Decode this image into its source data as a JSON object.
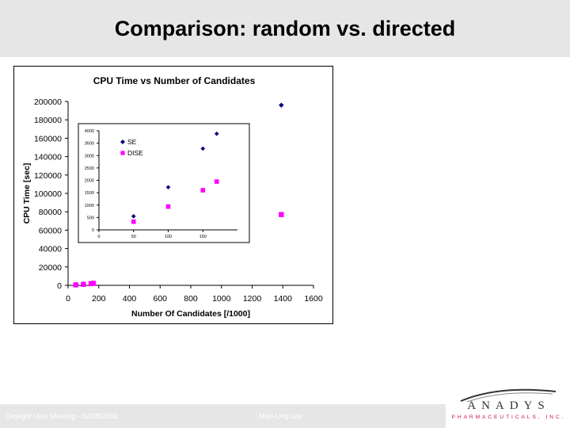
{
  "slide": {
    "title": "Comparison: random vs. directed",
    "footer_left": "Daylight User Meeting - 02/28/2002",
    "footer_center": "Man-Ling Lee"
  },
  "logo": {
    "name": "ANADYS",
    "subtitle": "PHARMACEUTICALS, INC.",
    "accent_color": "#c8103e"
  },
  "colors": {
    "se": "#000080",
    "dise": "#ff00ff"
  },
  "chart_data": [
    {
      "type": "scatter",
      "title": "CPU Time vs Number of Candidates",
      "xlabel": "Number Of Candidates [/1000]",
      "ylabel": "CPU Time [sec]",
      "xlim": [
        0,
        1600
      ],
      "ylim": [
        0,
        200000
      ],
      "x_ticks": [
        0,
        200,
        400,
        600,
        800,
        1000,
        1200,
        1400,
        1600
      ],
      "y_ticks": [
        0,
        20000,
        40000,
        60000,
        80000,
        100000,
        120000,
        140000,
        160000,
        180000,
        200000
      ],
      "grid": false,
      "series": [
        {
          "name": "SE",
          "marker": "diamond",
          "points": [
            [
              50,
              800
            ],
            [
              100,
              1500
            ],
            [
              150,
              2300
            ],
            [
              165,
              2600
            ],
            [
              1390,
              196000
            ]
          ]
        },
        {
          "name": "DISE",
          "marker": "square",
          "points": [
            [
              50,
              500
            ],
            [
              100,
              1000
            ],
            [
              150,
              1800
            ],
            [
              165,
              2100
            ],
            [
              1390,
              77000
            ]
          ]
        }
      ]
    },
    {
      "type": "scatter",
      "xlim": [
        0,
        200
      ],
      "ylim": [
        0,
        4000
      ],
      "x_ticks": [
        0,
        50,
        100,
        150
      ],
      "y_ticks": [
        0,
        500,
        1000,
        1500,
        2000,
        2500,
        3000,
        3500,
        4000
      ],
      "legend": "top-left",
      "grid": false,
      "series": [
        {
          "name": "SE",
          "marker": "diamond",
          "points": [
            [
              50,
              550
            ],
            [
              100,
              1720
            ],
            [
              150,
              3280
            ],
            [
              170,
              3880
            ]
          ]
        },
        {
          "name": "DISE",
          "marker": "square",
          "points": [
            [
              50,
              330
            ],
            [
              100,
              940
            ],
            [
              150,
              1600
            ],
            [
              170,
              1950
            ]
          ]
        }
      ]
    }
  ]
}
